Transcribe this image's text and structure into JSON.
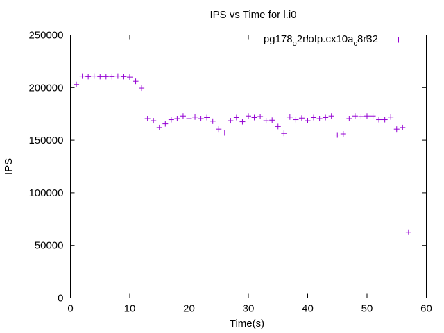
{
  "chart_data": {
    "type": "scatter",
    "title": "IPS vs Time for l.i0",
    "xlabel": "Time(s)",
    "ylabel": "IPS",
    "xlim": [
      0,
      60
    ],
    "ylim": [
      0,
      250000
    ],
    "xticks": [
      0,
      10,
      20,
      30,
      40,
      50,
      60
    ],
    "yticks": [
      0,
      50000,
      100000,
      150000,
      200000,
      250000
    ],
    "xtick_labels": [
      "0",
      "10",
      "20",
      "30",
      "40",
      "50",
      "60"
    ],
    "ytick_labels": [
      "0",
      "50000",
      "100000",
      "150000",
      "200000",
      "250000"
    ],
    "grid": false,
    "legend_position": "top-right",
    "marker": "+",
    "series": [
      {
        "name": "pg178_o2nofp.cx10a_c8r32",
        "legend_parts": [
          "pg178",
          "o",
          "2nofp.cx10a",
          "c",
          "8r32"
        ],
        "color": "#9400d3",
        "x": [
          1,
          2,
          3,
          4,
          5,
          6,
          7,
          8,
          9,
          10,
          11,
          12,
          13,
          14,
          15,
          16,
          17,
          18,
          19,
          20,
          21,
          22,
          23,
          24,
          25,
          26,
          27,
          28,
          29,
          30,
          31,
          32,
          33,
          34,
          35,
          36,
          37,
          38,
          39,
          40,
          41,
          42,
          43,
          44,
          45,
          46,
          47,
          48,
          49,
          50,
          51,
          52,
          53,
          54,
          55,
          56,
          57
        ],
        "y": [
          203000,
          211000,
          210500,
          211000,
          210500,
          210500,
          210500,
          211000,
          210500,
          210000,
          206000,
          199500,
          170500,
          168500,
          162000,
          165500,
          169500,
          170500,
          173000,
          170500,
          172000,
          170500,
          171500,
          168000,
          160500,
          157000,
          168500,
          171500,
          167500,
          173000,
          171500,
          172500,
          168500,
          169000,
          163000,
          156500,
          172000,
          169500,
          171000,
          168500,
          171500,
          170500,
          171500,
          173000,
          155000,
          156000,
          170500,
          173000,
          172500,
          173000,
          173000,
          169500,
          169500,
          172000,
          160500,
          162000,
          62500
        ]
      }
    ]
  }
}
